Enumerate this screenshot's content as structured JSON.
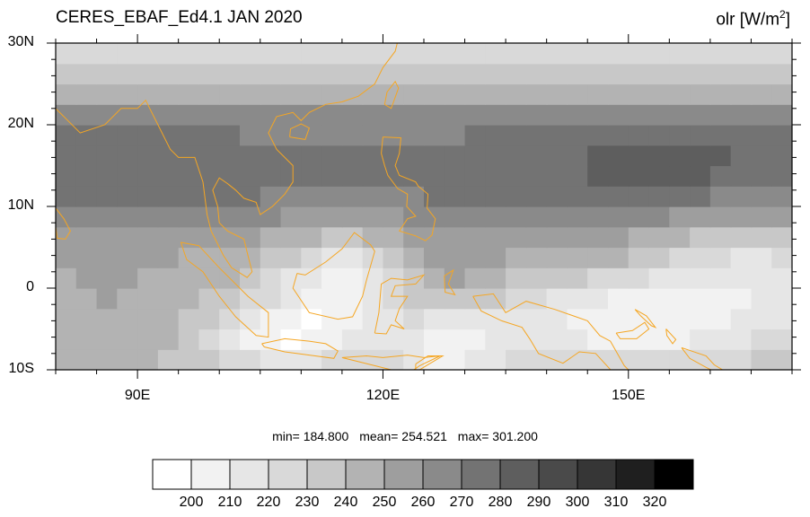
{
  "header": {
    "title": "CERES_EBAF_Ed4.1 JAN 2020",
    "variable": "olr [W/m",
    "variable_sup": "2",
    "variable_close": "]"
  },
  "map": {
    "lon_range": [
      80,
      170
    ],
    "lat_range": [
      -10,
      30
    ],
    "coastline_color": "#f5a623",
    "lat_ticks": [
      {
        "value": 30,
        "label": "30N"
      },
      {
        "value": 20,
        "label": "20N"
      },
      {
        "value": 10,
        "label": "10N"
      },
      {
        "value": 0,
        "label": "0"
      },
      {
        "value": -10,
        "label": "10S"
      }
    ],
    "lon_ticks": [
      {
        "value": 90,
        "label": "90E"
      },
      {
        "value": 120,
        "label": "120E"
      },
      {
        "value": 150,
        "label": "150E"
      }
    ]
  },
  "stats": {
    "min": "min= 184.800",
    "mean": "mean= 254.521",
    "max": "max= 301.200"
  },
  "colorbar": {
    "colors": [
      "#ffffff",
      "#f2f2f2",
      "#e6e6e6",
      "#d9d9d9",
      "#c8c8c8",
      "#b3b3b3",
      "#9e9e9e",
      "#8a8a8a",
      "#737373",
      "#5e5e5e",
      "#4a4a4a",
      "#363636",
      "#1f1f1f",
      "#000000"
    ],
    "labels": [
      "200",
      "210",
      "220",
      "230",
      "240",
      "250",
      "260",
      "270",
      "280",
      "290",
      "300",
      "310",
      "320"
    ]
  }
}
